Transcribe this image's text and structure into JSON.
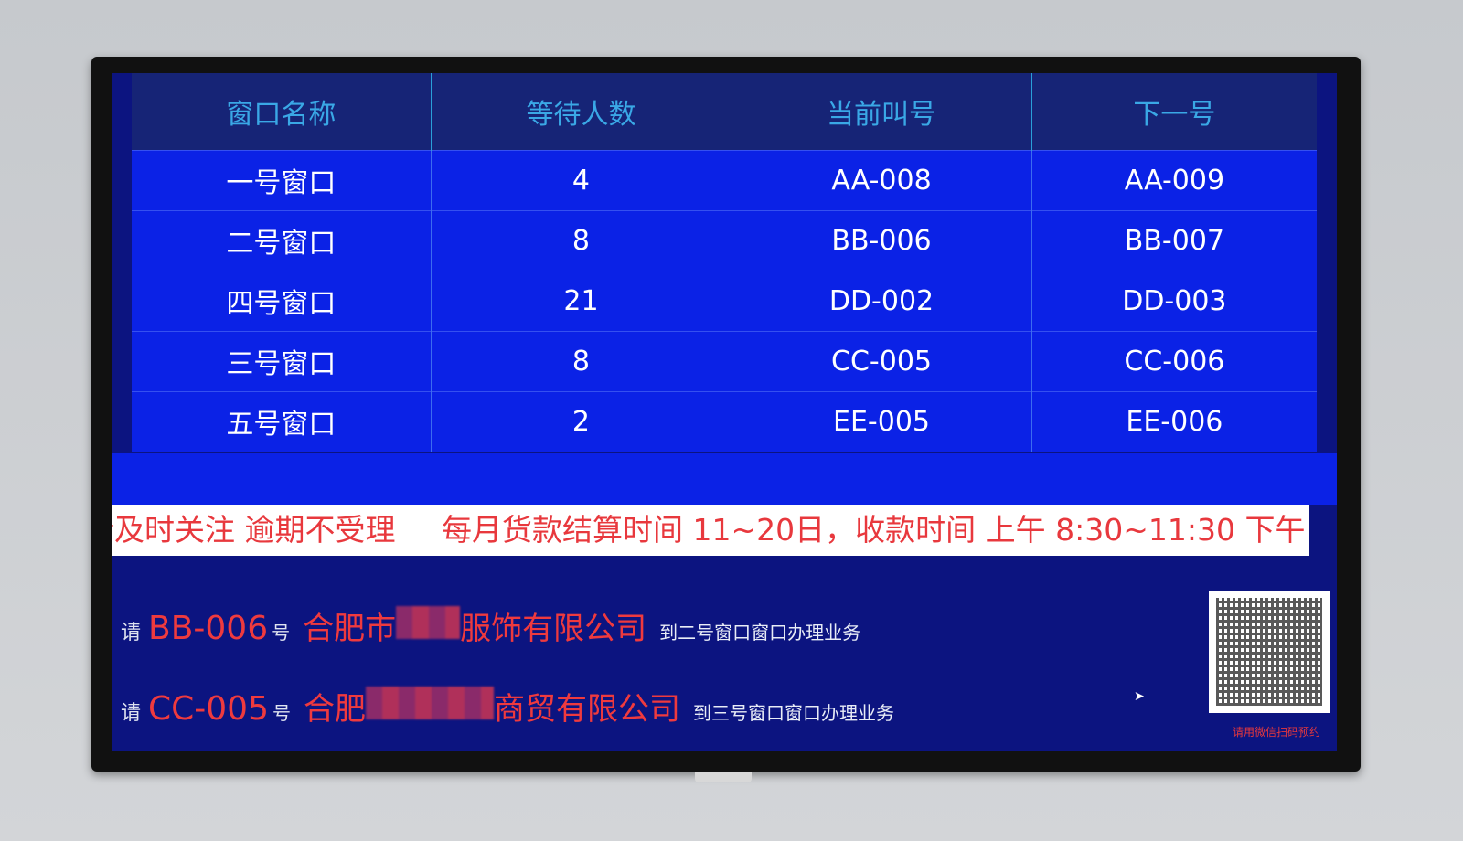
{
  "table": {
    "headers": [
      "窗口名称",
      "等待人数",
      "当前叫号",
      "下一号"
    ],
    "rows": [
      [
        "一号窗口",
        "4",
        "AA-008",
        "AA-009"
      ],
      [
        "二号窗口",
        "8",
        "BB-006",
        "BB-007"
      ],
      [
        "四号窗口",
        "21",
        "DD-002",
        "DD-003"
      ],
      [
        "三号窗口",
        "8",
        "CC-005",
        "CC-006"
      ],
      [
        "五号窗口",
        "2",
        "EE-005",
        "EE-006"
      ]
    ]
  },
  "marquee": {
    "part1": "请及时关注 逾期不受理",
    "part2": "每月货款结算时间 11~20日，收款时间 上午 8:30~11:30 下午"
  },
  "calls": [
    {
      "prefix": "请",
      "number": "BB-006",
      "suffix": "号",
      "company_start": "合肥市",
      "company_end": "服饰有限公司",
      "destination": "到二号窗口窗口办理业务"
    },
    {
      "prefix": "请",
      "number": "CC-005",
      "suffix": "号",
      "company_start": "合肥",
      "company_end": "商贸有限公司",
      "destination": "到三号窗口窗口办理业务"
    }
  ],
  "qr": {
    "caption": "请用微信扫码预约",
    "icon": "qr-code-icon"
  },
  "colors": {
    "header_text": "#3aa8e6",
    "row_bg": "#0b22e6",
    "marquee_text": "#e8383d",
    "screen_bg": "#0c1480"
  }
}
